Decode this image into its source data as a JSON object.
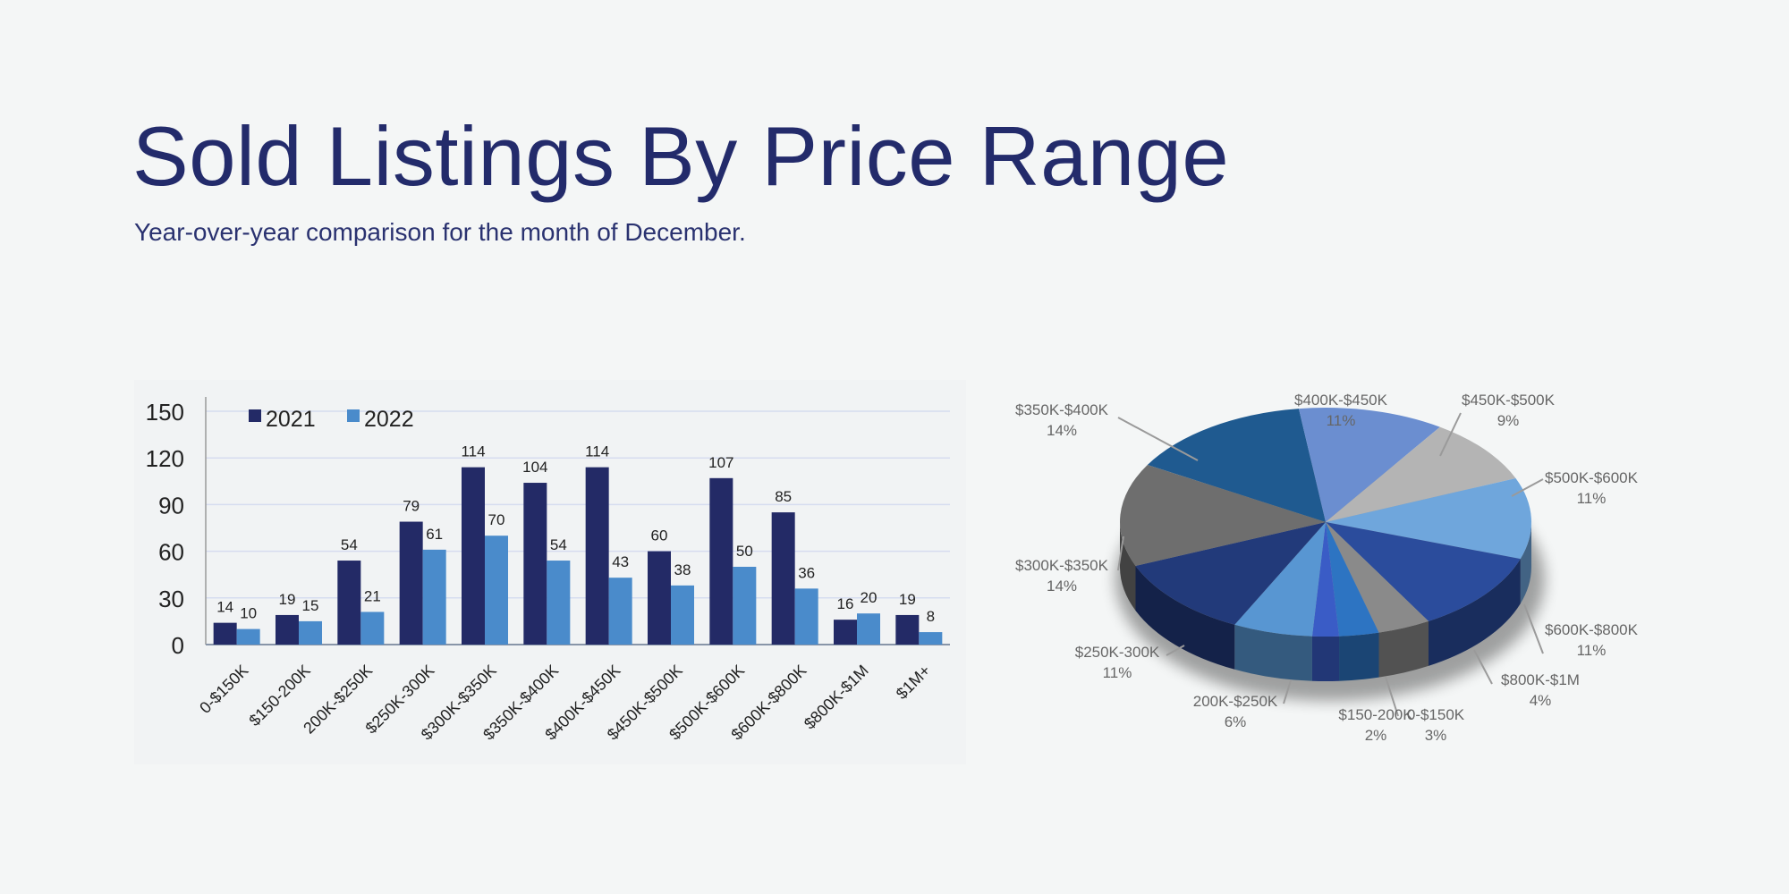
{
  "header": {
    "title": "Sold Listings By Price Range",
    "subtitle": "Year-over-year comparison for the month of December."
  },
  "chart_data": [
    {
      "type": "bar",
      "categories": [
        "0-$150K",
        "$150-200K",
        "200K-$250K",
        "$250K-300K",
        "$300K-$350K",
        "$350K-$400K",
        "$400K-$450K",
        "$450K-$500K",
        "$500K-$600K",
        "$600K-$800K",
        "$800K-$1M",
        "$1M+"
      ],
      "series": [
        {
          "name": "2021",
          "color": "#232a66",
          "values": [
            14,
            19,
            54,
            79,
            114,
            104,
            114,
            60,
            107,
            85,
            16,
            19
          ]
        },
        {
          "name": "2022",
          "color": "#4a8bcb",
          "values": [
            10,
            15,
            21,
            61,
            70,
            54,
            43,
            38,
            50,
            36,
            20,
            8
          ]
        }
      ],
      "yticks": [
        0,
        30,
        60,
        90,
        120,
        150
      ],
      "ylim": [
        0,
        150
      ],
      "grid": true,
      "legend": "top-left"
    },
    {
      "type": "pie",
      "style": "3d",
      "slices": [
        {
          "label": "$350K-$400K",
          "pct": "14%",
          "value": 14,
          "color": "#1f5a90"
        },
        {
          "label": "$400K-$450K",
          "pct": "11%",
          "value": 11,
          "color": "#6b8ed0"
        },
        {
          "label": "$450K-$500K",
          "pct": "9%",
          "value": 9,
          "color": "#b4b4b4"
        },
        {
          "label": "$500K-$600K",
          "pct": "11%",
          "value": 11,
          "color": "#6fa6dc"
        },
        {
          "label": "$600K-$800K",
          "pct": "11%",
          "value": 11,
          "color": "#2b4c9c"
        },
        {
          "label": "$800K-$1M",
          "pct": "4%",
          "value": 4,
          "color": "#8a8a8a"
        },
        {
          "label": "0-$150K",
          "pct": "3%",
          "value": 3,
          "color": "#2d74c2"
        },
        {
          "label": "$150-200K",
          "pct": "2%",
          "value": 2,
          "color": "#3a5cc6"
        },
        {
          "label": "200K-$250K",
          "pct": "6%",
          "value": 6,
          "color": "#5896d2"
        },
        {
          "label": "$250K-300K",
          "pct": "11%",
          "value": 11,
          "color": "#223a7a"
        },
        {
          "label": "$300K-$350K",
          "pct": "14%",
          "value": 14,
          "color": "#6e6e6e"
        }
      ]
    }
  ]
}
